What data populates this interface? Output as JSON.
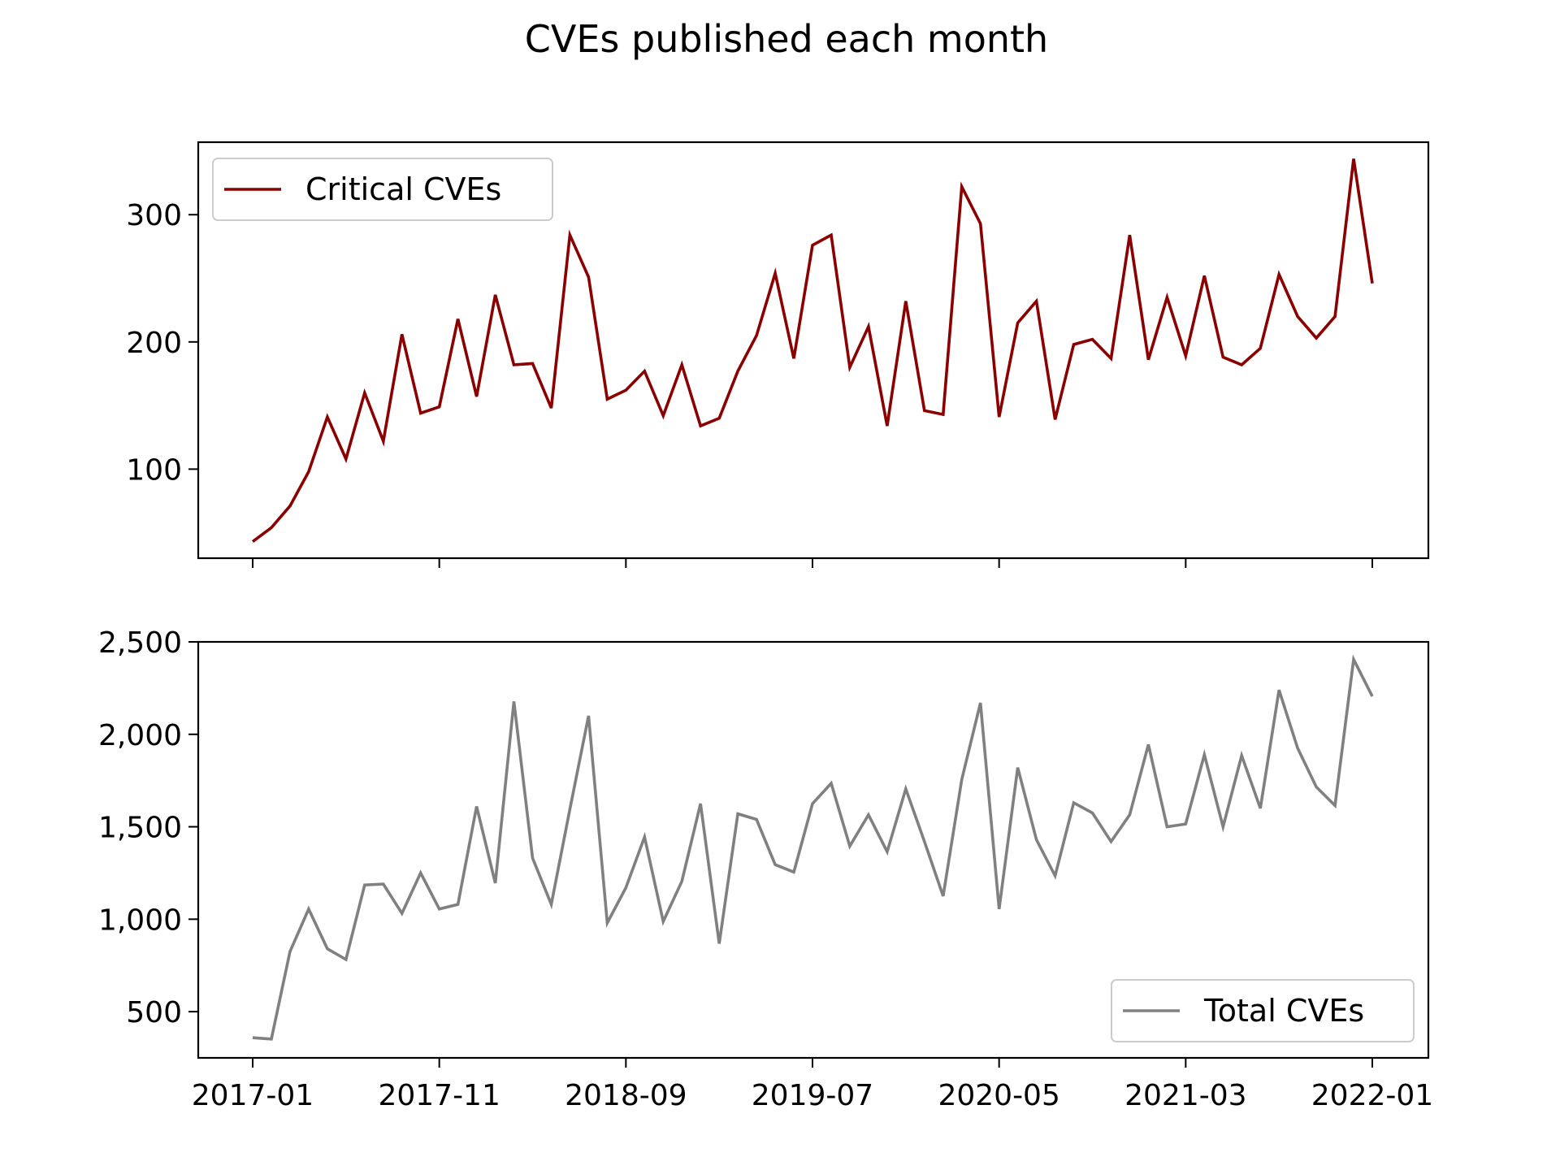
{
  "figure_title": "CVEs published each month",
  "chart_data": [
    {
      "type": "line",
      "x": [
        "2017-01",
        "2017-02",
        "2017-03",
        "2017-04",
        "2017-05",
        "2017-06",
        "2017-07",
        "2017-08",
        "2017-09",
        "2017-10",
        "2017-11",
        "2017-12",
        "2018-01",
        "2018-02",
        "2018-03",
        "2018-04",
        "2018-05",
        "2018-06",
        "2018-07",
        "2018-08",
        "2018-09",
        "2018-10",
        "2018-11",
        "2018-12",
        "2019-01",
        "2019-02",
        "2019-03",
        "2019-04",
        "2019-05",
        "2019-06",
        "2019-07",
        "2019-08",
        "2019-09",
        "2019-10",
        "2019-11",
        "2019-12",
        "2020-01",
        "2020-02",
        "2020-03",
        "2020-04",
        "2020-05",
        "2020-06",
        "2020-07",
        "2020-08",
        "2020-09",
        "2020-10",
        "2020-11",
        "2020-12",
        "2021-01",
        "2021-02",
        "2021-03",
        "2021-04",
        "2021-05",
        "2021-06",
        "2021-07",
        "2021-08",
        "2021-09",
        "2021-10",
        "2021-11",
        "2021-12",
        "2022-01"
      ],
      "series": [
        {
          "name": "Critical CVEs",
          "color": "#8b0000",
          "values": [
            43,
            54,
            71,
            98,
            141,
            108,
            160,
            122,
            206,
            144,
            149,
            218,
            157,
            237,
            182,
            183,
            148,
            284,
            251,
            155,
            162,
            177,
            142,
            182,
            134,
            140,
            177,
            205,
            254,
            187,
            276,
            284,
            180,
            212,
            134,
            232,
            146,
            143,
            322,
            293,
            141,
            215,
            232,
            139,
            198,
            202,
            187,
            284,
            186,
            235,
            189,
            252,
            188,
            182,
            195,
            253,
            220,
            203,
            220,
            344,
            246
          ]
        }
      ],
      "xticks": [
        "2017-01",
        "2017-11",
        "2018-09",
        "2019-07",
        "2020-05",
        "2021-03",
        "2022-01"
      ],
      "yticks": [
        100,
        200,
        300
      ],
      "ylim": [
        30,
        357
      ],
      "legend": "upper-left",
      "grid": false,
      "show_xtick_labels": false
    },
    {
      "type": "line",
      "x": [
        "2017-01",
        "2017-02",
        "2017-03",
        "2017-04",
        "2017-05",
        "2017-06",
        "2017-07",
        "2017-08",
        "2017-09",
        "2017-10",
        "2017-11",
        "2017-12",
        "2018-01",
        "2018-02",
        "2018-03",
        "2018-04",
        "2018-05",
        "2018-06",
        "2018-07",
        "2018-08",
        "2018-09",
        "2018-10",
        "2018-11",
        "2018-12",
        "2019-01",
        "2019-02",
        "2019-03",
        "2019-04",
        "2019-05",
        "2019-06",
        "2019-07",
        "2019-08",
        "2019-09",
        "2019-10",
        "2019-11",
        "2019-12",
        "2020-01",
        "2020-02",
        "2020-03",
        "2020-04",
        "2020-05",
        "2020-06",
        "2020-07",
        "2020-08",
        "2020-09",
        "2020-10",
        "2020-11",
        "2020-12",
        "2021-01",
        "2021-02",
        "2021-03",
        "2021-04",
        "2021-05",
        "2021-06",
        "2021-07",
        "2021-08",
        "2021-09",
        "2021-10",
        "2021-11",
        "2021-12",
        "2022-01"
      ],
      "series": [
        {
          "name": "Total CVEs",
          "color": "#808080",
          "values": [
            359,
            352,
            825,
            1055,
            840,
            782,
            1185,
            1190,
            1032,
            1250,
            1055,
            1080,
            1610,
            1195,
            2178,
            1330,
            1080,
            1595,
            2100,
            980,
            1170,
            1445,
            988,
            1205,
            1625,
            868,
            1570,
            1540,
            1295,
            1255,
            1625,
            1735,
            1395,
            1565,
            1365,
            1705,
            1420,
            1125,
            1755,
            2170,
            1055,
            1820,
            1430,
            1235,
            1630,
            1575,
            1420,
            1565,
            1945,
            1500,
            1515,
            1890,
            1500,
            1885,
            1600,
            2240,
            1925,
            1715,
            1615,
            2405,
            2205
          ]
        }
      ],
      "xticks": [
        "2017-01",
        "2017-11",
        "2018-09",
        "2019-07",
        "2020-05",
        "2021-03",
        "2022-01"
      ],
      "yticks": [
        500,
        1000,
        1500,
        2000,
        2500
      ],
      "yticklabels": [
        "500",
        "1,000",
        "1,500",
        "2,000",
        "2,500"
      ],
      "ylim": [
        250,
        2500
      ],
      "legend": "lower-right",
      "grid": false,
      "show_xtick_labels": true
    }
  ]
}
